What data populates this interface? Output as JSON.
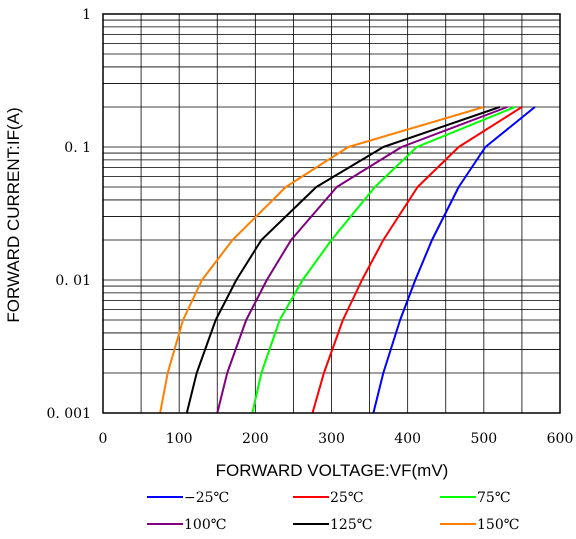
{
  "chart_data": {
    "type": "line",
    "title": "",
    "xlabel": "FORWARD VOLTAGE:VF(mV)",
    "ylabel": "FORWARD CURRENT:IF(A)",
    "xlim": [
      0,
      600
    ],
    "ylim": [
      0.001,
      1
    ],
    "yscale": "log",
    "grid": true,
    "legend_placement": "bottom",
    "x_ticks": [
      "0",
      "100",
      "200",
      "300",
      "400",
      "500",
      "600"
    ],
    "y_ticks": [
      {
        "value": 1,
        "label": "1"
      },
      {
        "value": 0.1,
        "label": "0. 1"
      },
      {
        "value": 0.01,
        "label": "0. 01"
      },
      {
        "value": 0.001,
        "label": "0. 001"
      }
    ],
    "series": [
      {
        "name": "−25℃",
        "color": "#0000ff",
        "points": [
          [
            355,
            0.001
          ],
          [
            368,
            0.002
          ],
          [
            390,
            0.005
          ],
          [
            410,
            0.01
          ],
          [
            432,
            0.02
          ],
          [
            467,
            0.05
          ],
          [
            502,
            0.1
          ],
          [
            567,
            0.2
          ]
        ]
      },
      {
        "name": "25℃",
        "color": "#ff0000",
        "points": [
          [
            275,
            0.001
          ],
          [
            290,
            0.002
          ],
          [
            315,
            0.005
          ],
          [
            340,
            0.01
          ],
          [
            368,
            0.02
          ],
          [
            413,
            0.05
          ],
          [
            467,
            0.1
          ],
          [
            550,
            0.2
          ]
        ]
      },
      {
        "name": "75℃",
        "color": "#00ff00",
        "points": [
          [
            196,
            0.001
          ],
          [
            208,
            0.002
          ],
          [
            232,
            0.005
          ],
          [
            262,
            0.01
          ],
          [
            300,
            0.02
          ],
          [
            357,
            0.05
          ],
          [
            412,
            0.1
          ],
          [
            541,
            0.2
          ]
        ]
      },
      {
        "name": "100℃",
        "color": "#800080",
        "points": [
          [
            150,
            0.001
          ],
          [
            163,
            0.002
          ],
          [
            188,
            0.005
          ],
          [
            215,
            0.01
          ],
          [
            247,
            0.02
          ],
          [
            307,
            0.05
          ],
          [
            392,
            0.1
          ],
          [
            531,
            0.2
          ]
        ]
      },
      {
        "name": "125℃",
        "color": "#000000",
        "points": [
          [
            110,
            0.001
          ],
          [
            123,
            0.002
          ],
          [
            148,
            0.005
          ],
          [
            175,
            0.01
          ],
          [
            208,
            0.02
          ],
          [
            280,
            0.05
          ],
          [
            368,
            0.1
          ],
          [
            521,
            0.2
          ]
        ]
      },
      {
        "name": "150℃",
        "color": "#ff7f00",
        "points": [
          [
            75,
            0.001
          ],
          [
            85,
            0.002
          ],
          [
            105,
            0.005
          ],
          [
            130,
            0.01
          ],
          [
            170,
            0.02
          ],
          [
            240,
            0.05
          ],
          [
            322,
            0.1
          ],
          [
            500,
            0.2
          ]
        ]
      }
    ]
  }
}
